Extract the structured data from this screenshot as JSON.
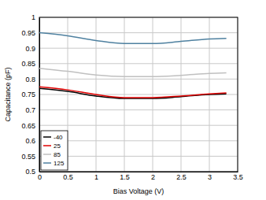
{
  "chart_data": {
    "type": "line",
    "x_label": "Bias Voltage (V)",
    "y_label": "Capacitance (pF)",
    "x": [
      0,
      0.5,
      1,
      1.5,
      2,
      2.5,
      3,
      3.3
    ],
    "series": [
      {
        "name": "-40",
        "color": "#000000",
        "values": [
          0.77,
          0.76,
          0.745,
          0.737,
          0.737,
          0.743,
          0.75,
          0.752
        ]
      },
      {
        "name": "25",
        "color": "#e00000",
        "values": [
          0.775,
          0.765,
          0.75,
          0.74,
          0.74,
          0.745,
          0.752,
          0.755
        ]
      },
      {
        "name": "85",
        "color": "#c0c0c0",
        "values": [
          0.835,
          0.825,
          0.813,
          0.808,
          0.808,
          0.812,
          0.818,
          0.82
        ]
      },
      {
        "name": "125",
        "color": "#4f81a0",
        "values": [
          0.95,
          0.94,
          0.925,
          0.915,
          0.915,
          0.922,
          0.93,
          0.932
        ]
      }
    ],
    "xlim": [
      0,
      3.5
    ],
    "xticks": [
      0,
      0.5,
      1,
      1.5,
      2,
      2.5,
      3,
      3.5
    ],
    "ylim": [
      0.5,
      1
    ],
    "yticks": [
      0.5,
      0.55,
      0.6,
      0.65,
      0.7,
      0.75,
      0.8,
      0.85,
      0.9,
      0.95,
      1
    ],
    "grid": true,
    "legend": "lower left"
  }
}
